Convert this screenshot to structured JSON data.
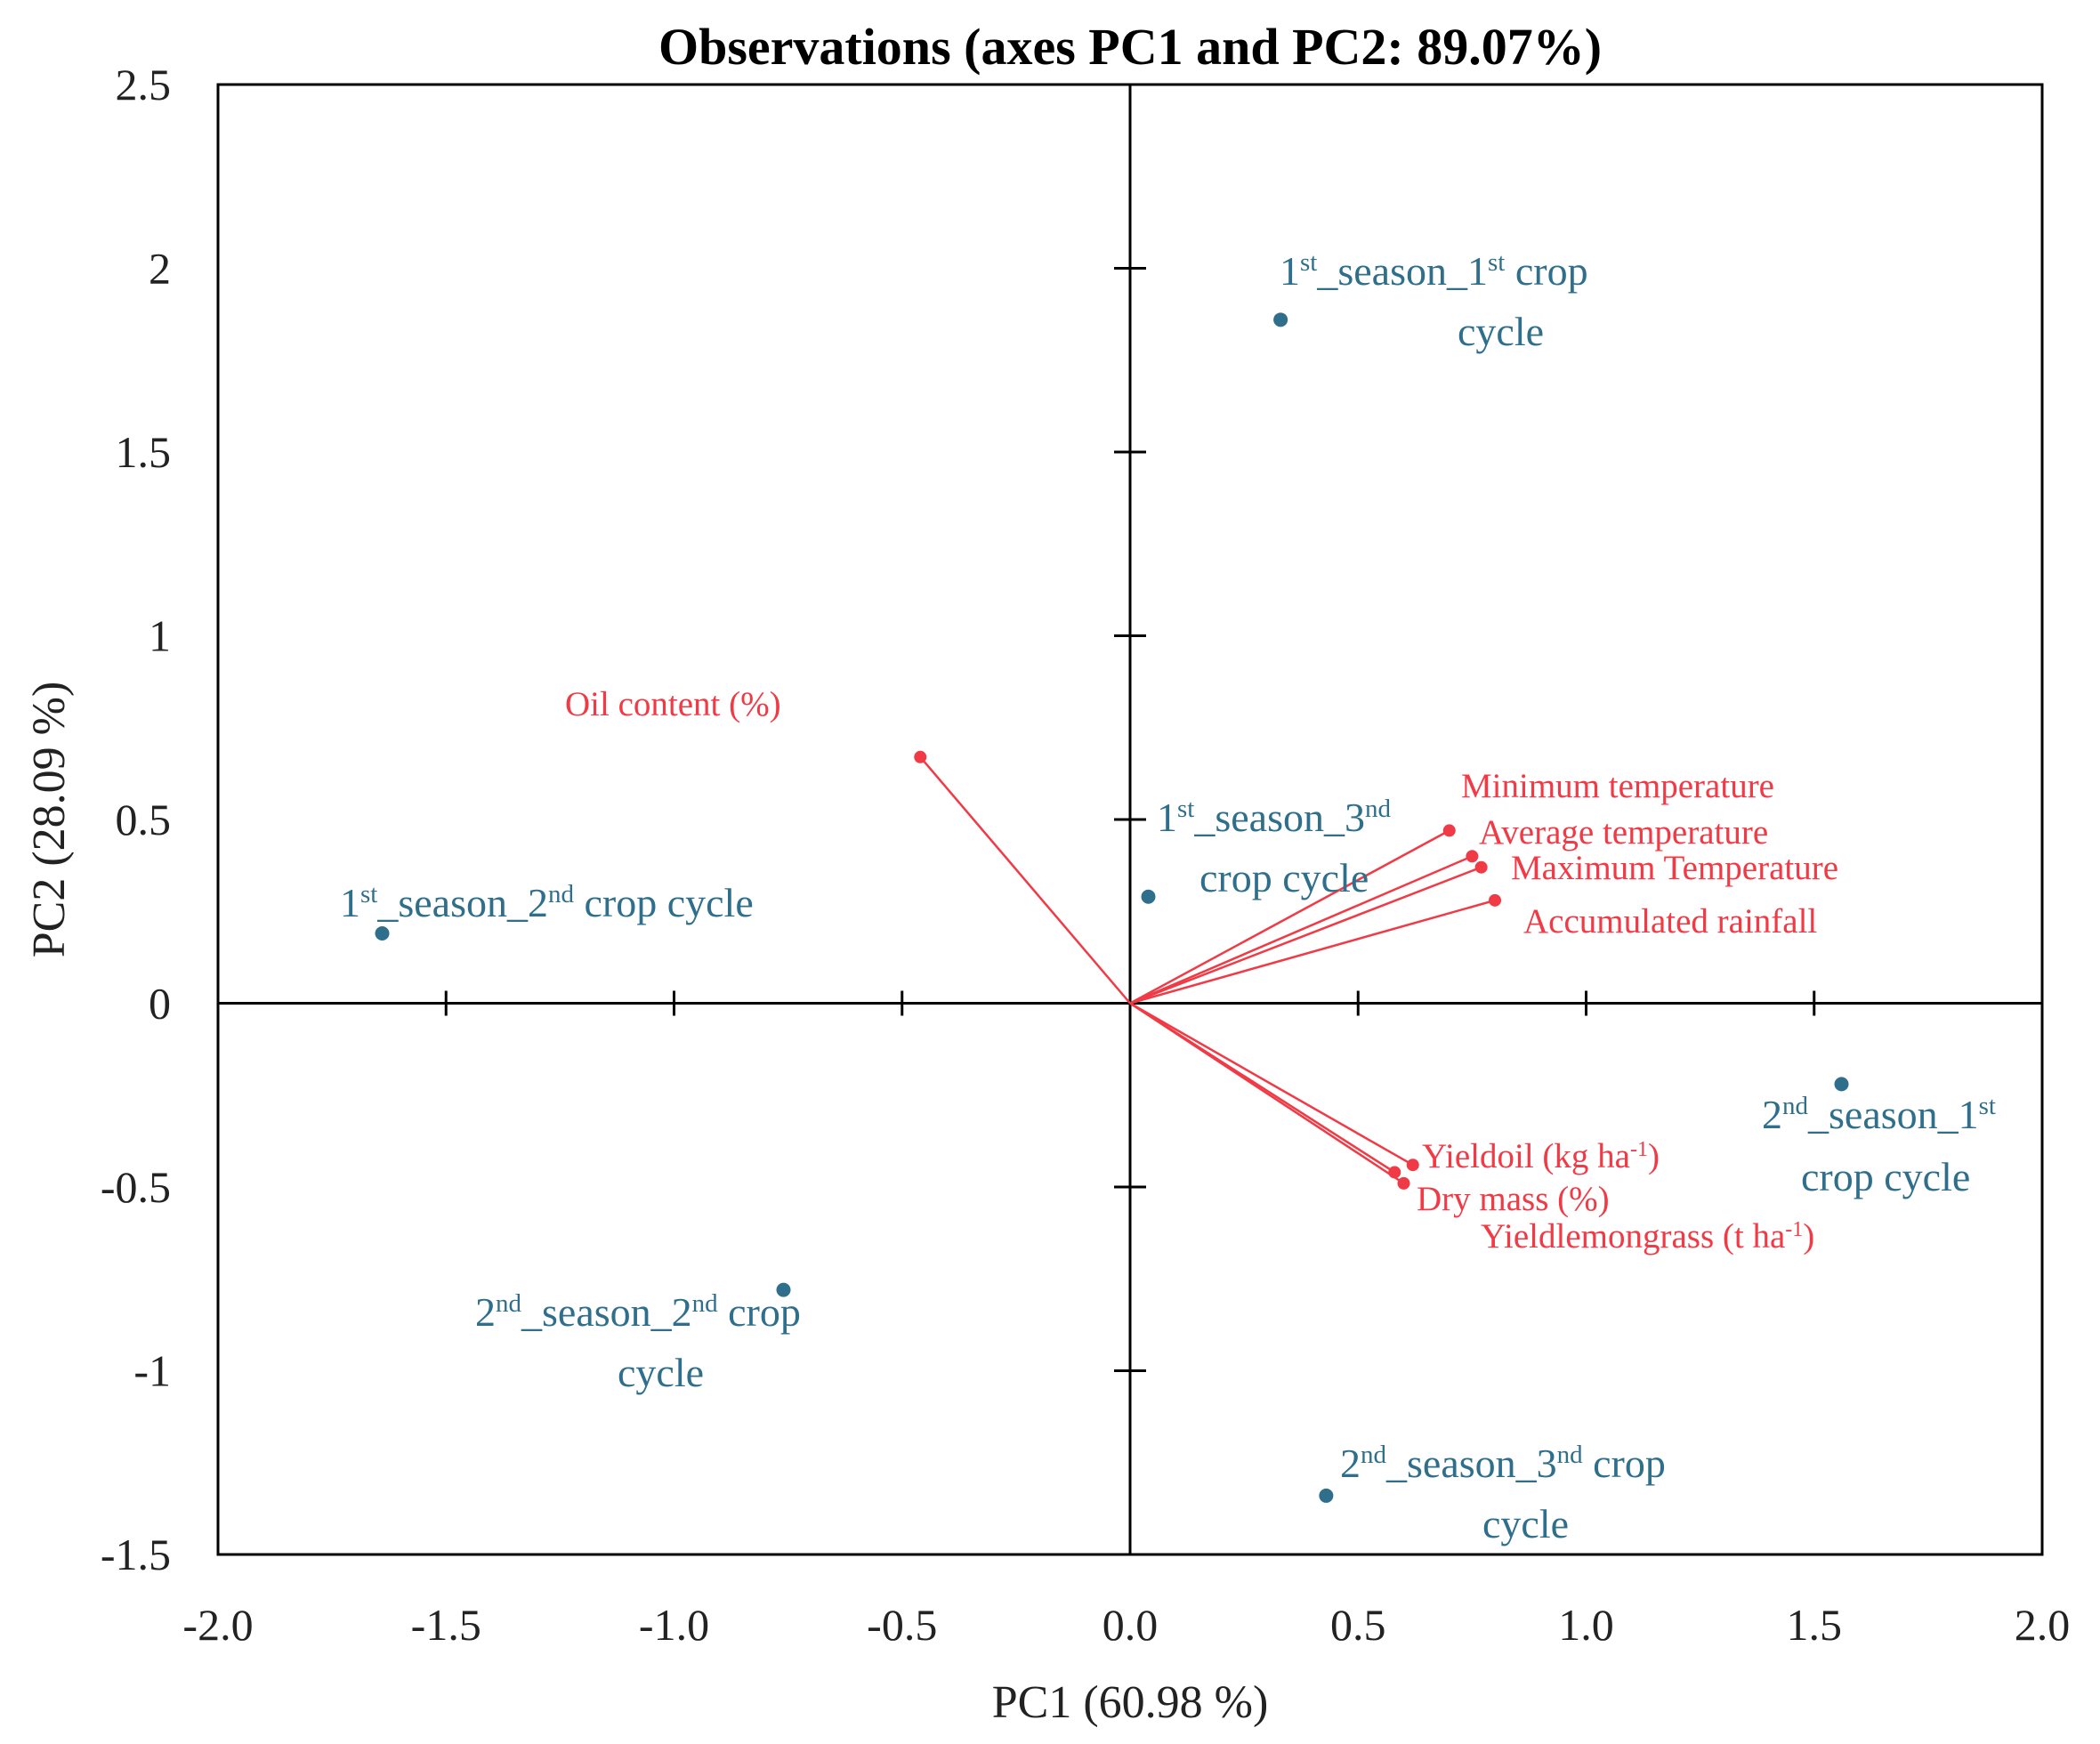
{
  "chart_data": {
    "type": "scatter",
    "title": "Observations (axes PC1 and PC2: 89.07%)",
    "xlabel": "PC1 (60.98 %)",
    "ylabel": "PC2 (28.09 %)",
    "xlim": [
      -2.0,
      2.0
    ],
    "ylim": [
      -1.5,
      2.5
    ],
    "x_ticks": [
      "-2.0",
      "-1.5",
      "-1.0",
      "-0.5",
      "0.0",
      "0.5",
      "1.0",
      "1.5",
      "2.0"
    ],
    "y_ticks": [
      "2.5",
      "2",
      "1.5",
      "1",
      "0.5",
      "0",
      "-0.5",
      "-1",
      "-1.5"
    ],
    "colors": {
      "observations": "#2f6f8c",
      "variables": "#f03a45",
      "axes": "#000000"
    },
    "observations": [
      {
        "x": 0.33,
        "y": 1.86,
        "label_lines": [
          [
            {
              "t": "1"
            },
            {
              "t": "st",
              "sup": true
            },
            {
              "t": "_season_1"
            },
            {
              "t": "st",
              "sup": true
            },
            {
              "t": " crop"
            }
          ],
          [
            {
              "t": "cycle"
            }
          ]
        ]
      },
      {
        "x": -1.64,
        "y": 0.19,
        "label_lines": [
          [
            {
              "t": "1"
            },
            {
              "t": "st",
              "sup": true
            },
            {
              "t": "_season_2"
            },
            {
              "t": "nd",
              "sup": true
            },
            {
              "t": " crop cycle"
            }
          ]
        ]
      },
      {
        "x": 0.04,
        "y": 0.29,
        "label_lines": [
          [
            {
              "t": "1"
            },
            {
              "t": "st",
              "sup": true
            },
            {
              "t": "_season_3"
            },
            {
              "t": "nd",
              "sup": true
            }
          ],
          [
            {
              "t": "crop cycle"
            }
          ]
        ]
      },
      {
        "x": 1.56,
        "y": -0.22,
        "label_lines": [
          [
            {
              "t": "2"
            },
            {
              "t": "nd",
              "sup": true
            },
            {
              "t": "_season_1"
            },
            {
              "t": "st",
              "sup": true
            }
          ],
          [
            {
              "t": "crop cycle"
            }
          ]
        ]
      },
      {
        "x": -0.76,
        "y": -0.78,
        "label_lines": [
          [
            {
              "t": "2"
            },
            {
              "t": "nd",
              "sup": true
            },
            {
              "t": "_season_2"
            },
            {
              "t": "nd",
              "sup": true
            },
            {
              "t": " crop"
            }
          ],
          [
            {
              "t": "cycle"
            }
          ]
        ]
      },
      {
        "x": 0.43,
        "y": -1.34,
        "label_lines": [
          [
            {
              "t": "2"
            },
            {
              "t": "nd",
              "sup": true
            },
            {
              "t": "_season_3"
            },
            {
              "t": "nd",
              "sup": true
            },
            {
              "t": " crop"
            }
          ],
          [
            {
              "t": "cycle"
            }
          ]
        ]
      }
    ],
    "variables": [
      {
        "x": -0.46,
        "y": 0.67,
        "label": [
          {
            "t": "Oil content (%)"
          }
        ]
      },
      {
        "x": 0.7,
        "y": 0.47,
        "label": [
          {
            "t": "Minimum temperature"
          }
        ]
      },
      {
        "x": 0.75,
        "y": 0.4,
        "label": [
          {
            "t": "Average temperature"
          }
        ]
      },
      {
        "x": 0.77,
        "y": 0.37,
        "label": [
          {
            "t": "Maximum Temperature"
          }
        ]
      },
      {
        "x": 0.8,
        "y": 0.28,
        "label": [
          {
            "t": "Accumulated rainfall"
          }
        ]
      },
      {
        "x": 0.62,
        "y": -0.44,
        "label": [
          {
            "t": "Yieldoil  (kg ha"
          },
          {
            "t": "-1",
            "sup": true
          },
          {
            "t": ")"
          }
        ]
      },
      {
        "x": 0.6,
        "y": -0.49,
        "label": [
          {
            "t": "Dry mass (%)"
          }
        ]
      },
      {
        "x": 0.58,
        "y": -0.46,
        "label": [
          {
            "t": "Yieldlemongrass (t ha"
          },
          {
            "t": "-1",
            "sup": true
          },
          {
            "t": ")"
          }
        ]
      }
    ]
  }
}
